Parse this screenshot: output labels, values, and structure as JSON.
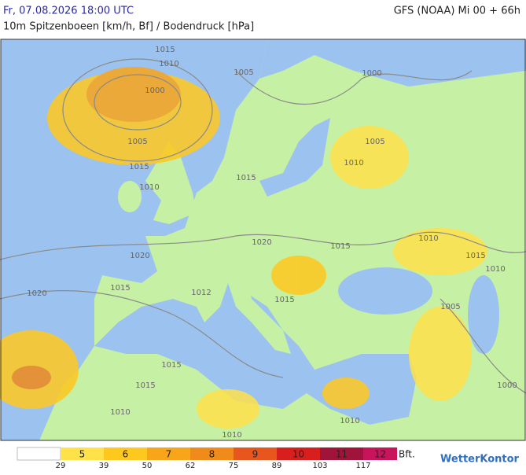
{
  "header": {
    "date": "Fr, 07.08.2026 18:00 UTC",
    "model": "GFS (NOAA) Mi 00 + 66h",
    "subtitle": "10m Spitzenboeen [km/h, Bf] / Bodendruck [hPa]"
  },
  "isobar_labels": [
    "1015",
    "1010",
    "1000",
    "1005",
    "1000",
    "1005",
    "1015",
    "1005",
    "1010",
    "1015",
    "1010",
    "1020",
    "1020",
    "1015",
    "1010",
    "1015",
    "1010",
    "1015",
    "1020",
    "1012",
    "1015",
    "1005",
    "1015",
    "1015",
    "1010",
    "1010",
    "1010",
    "1000"
  ],
  "legend": {
    "classes": [
      {
        "label": "5",
        "color": "#ffe14a"
      },
      {
        "label": "6",
        "color": "#ffc81e"
      },
      {
        "label": "7",
        "color": "#f9a51a"
      },
      {
        "label": "8",
        "color": "#f08a1a"
      },
      {
        "label": "9",
        "color": "#e8561e"
      },
      {
        "label": "10",
        "color": "#d91e1e"
      },
      {
        "label": "11",
        "color": "#a0143c"
      },
      {
        "label": "12",
        "color": "#c8145a"
      }
    ],
    "thresholds": [
      29,
      39,
      50,
      62,
      75,
      89,
      103,
      117
    ],
    "unit": "Bft."
  },
  "logo": "WetterKontor"
}
